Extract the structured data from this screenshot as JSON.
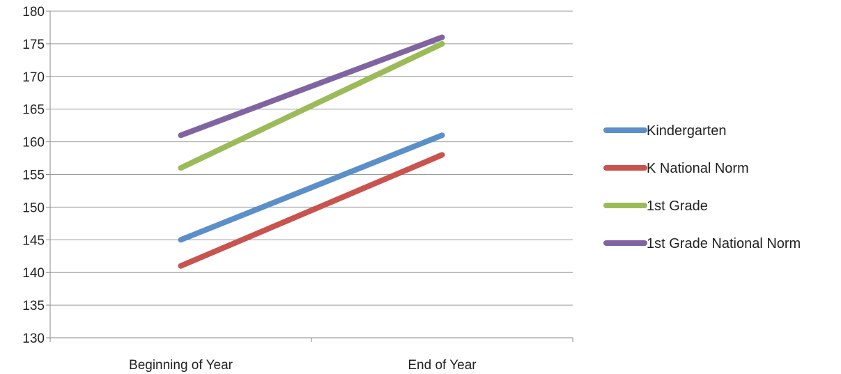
{
  "chart_data": {
    "type": "line",
    "title": "",
    "xlabel": "",
    "ylabel": "",
    "categories": [
      "Beginning of Year",
      "End of Year"
    ],
    "ylim": [
      130,
      180
    ],
    "yticks": [
      130,
      135,
      140,
      145,
      150,
      155,
      160,
      165,
      170,
      175,
      180
    ],
    "grid": true,
    "legend": "right",
    "series": [
      {
        "name": "Kindergarten",
        "values": [
          145,
          161
        ],
        "color": "#5B8FC9"
      },
      {
        "name": "K National Norm",
        "values": [
          141,
          158
        ],
        "color": "#C9534E"
      },
      {
        "name": "1st Grade",
        "values": [
          156,
          175
        ],
        "color": "#9BBB59"
      },
      {
        "name": "1st Grade National Norm",
        "values": [
          161,
          176
        ],
        "color": "#8064A2"
      }
    ]
  }
}
